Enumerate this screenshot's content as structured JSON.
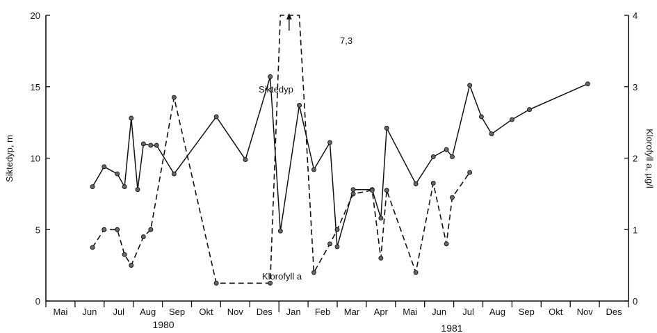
{
  "chart_data": {
    "type": "line",
    "title": "",
    "months": [
      "Mai",
      "Jun",
      "Jul",
      "Aug",
      "Sep",
      "Okt",
      "Nov",
      "Des",
      "Jan",
      "Feb",
      "Mar",
      "Apr",
      "Mai",
      "Jun",
      "Jul",
      "Aug",
      "Sep",
      "Okt",
      "Nov",
      "Des"
    ],
    "years": [
      "1980",
      "1981"
    ],
    "x_range": [
      0,
      20
    ],
    "ylabel_left": "Siktedyp, m",
    "ylabel_right": "Klorofyll a, µg/l",
    "yticks_left": [
      "0",
      "5",
      "10",
      "15",
      "20"
    ],
    "yticks_right": [
      "0",
      "1",
      "2",
      "3",
      "4"
    ],
    "ylim_left": [
      0,
      20
    ],
    "ylim_right": [
      0,
      4
    ],
    "grid": false,
    "series": [
      {
        "name": "Siktedyp",
        "axis": "left",
        "style": "solid",
        "x": [
          1.6,
          2.0,
          2.45,
          2.7,
          2.93,
          3.15,
          3.35,
          3.6,
          3.8,
          4.4,
          5.85,
          6.85,
          7.7,
          8.05,
          8.7,
          9.2,
          9.75,
          10.0,
          10.55,
          11.2,
          11.5,
          11.7,
          12.7,
          13.3,
          13.75,
          13.95,
          14.55,
          14.95,
          15.3,
          16.0,
          16.6,
          18.6
        ],
        "values": [
          8.0,
          9.4,
          8.9,
          8.0,
          12.8,
          7.8,
          11.0,
          10.9,
          10.9,
          8.9,
          12.9,
          9.9,
          15.7,
          4.9,
          13.7,
          9.2,
          11.1,
          3.8,
          7.8,
          7.8,
          5.8,
          12.1,
          8.2,
          10.1,
          10.6,
          10.1,
          15.1,
          12.9,
          11.7,
          12.7,
          13.4,
          15.2
        ]
      },
      {
        "name": "Klorofyll a",
        "axis": "right",
        "style": "dashed",
        "x": [
          1.6,
          2.0,
          2.45,
          2.7,
          2.93,
          3.35,
          3.6,
          4.4,
          5.85,
          7.7,
          8.05,
          8.35,
          8.7,
          9.2,
          9.75,
          10.0,
          10.55,
          11.2,
          11.5,
          11.7,
          12.7,
          13.3,
          13.75,
          13.95,
          14.55
        ],
        "values": [
          0.75,
          1.0,
          1.0,
          0.65,
          0.5,
          0.9,
          1.0,
          2.85,
          0.25,
          0.25,
          4.0,
          7.3,
          4.0,
          0.4,
          0.8,
          1.0,
          1.5,
          1.55,
          0.6,
          1.55,
          0.4,
          1.65,
          0.8,
          1.45,
          1.8
        ]
      }
    ],
    "annotations": [
      {
        "text": "Siktedyp"
      },
      {
        "text": "Klorofyll a"
      },
      {
        "text": "7,3"
      }
    ]
  }
}
